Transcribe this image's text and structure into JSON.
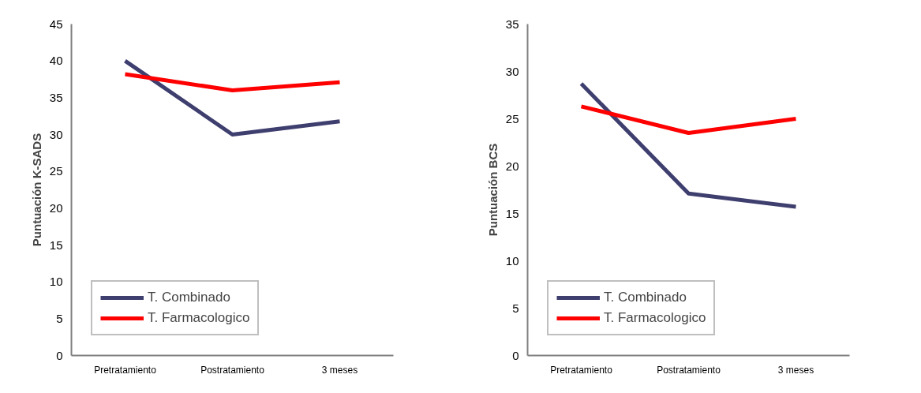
{
  "chart_data": [
    {
      "type": "line",
      "ylabel": "Puntuación K-SADS",
      "categories": [
        "Pretratamiento",
        "Postratamiento",
        "3 meses"
      ],
      "ylim": [
        0,
        45
      ],
      "yticks": [
        0,
        5,
        10,
        15,
        20,
        25,
        30,
        35,
        40,
        45
      ],
      "grid": false,
      "legend": "bottom left",
      "series": [
        {
          "name": "T. Combinado",
          "color": "#3f3f6f",
          "values": [
            40,
            30,
            31.8
          ]
        },
        {
          "name": "T. Farmacologico",
          "color": "#ff0000",
          "values": [
            38.2,
            36,
            37.1
          ]
        }
      ]
    },
    {
      "type": "line",
      "ylabel": "Puntuación BCS",
      "categories": [
        "Pretratamiento",
        "Postratamiento",
        "3 meses"
      ],
      "ylim": [
        0,
        35
      ],
      "yticks": [
        0,
        5,
        10,
        15,
        20,
        25,
        30,
        35
      ],
      "grid": false,
      "legend": "bottom left",
      "series": [
        {
          "name": "T. Combinado",
          "color": "#3f3f6f",
          "values": [
            28.7,
            17.1,
            15.7
          ]
        },
        {
          "name": "T. Farmacologico",
          "color": "#ff0000",
          "values": [
            26.3,
            23.5,
            25.0
          ]
        }
      ]
    }
  ]
}
